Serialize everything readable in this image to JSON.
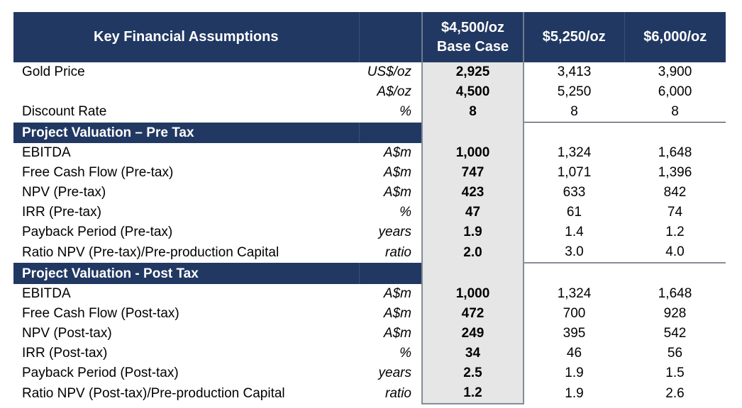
{
  "header": {
    "title": "Key Financial Assumptions",
    "unit_header": "",
    "columns": [
      {
        "line1": "$4,500/oz",
        "line2": "Base Case"
      },
      {
        "line1": "$5,250/oz",
        "line2": ""
      },
      {
        "line1": "$6,000/oz",
        "line2": ""
      }
    ]
  },
  "assumptions": [
    {
      "label": "Gold Price",
      "unit": "US$/oz",
      "base": "2,925",
      "alt1": "3,413",
      "alt2": "3,900"
    },
    {
      "label": "",
      "unit": "A$/oz",
      "base": "4,500",
      "alt1": "5,250",
      "alt2": "6,000"
    },
    {
      "label": "Discount Rate",
      "unit": "%",
      "base": "8",
      "alt1": "8",
      "alt2": "8"
    }
  ],
  "pre_tax": {
    "title": "Project Valuation – Pre Tax",
    "rows": [
      {
        "label": "EBITDA",
        "unit": "A$m",
        "base": "1,000",
        "alt1": "1,324",
        "alt2": "1,648"
      },
      {
        "label": "Free Cash Flow (Pre-tax)",
        "unit": "A$m",
        "base": "747",
        "alt1": "1,071",
        "alt2": "1,396"
      },
      {
        "label": "NPV (Pre-tax)",
        "unit": "A$m",
        "base": "423",
        "alt1": "633",
        "alt2": "842"
      },
      {
        "label": "IRR (Pre-tax)",
        "unit": "%",
        "base": "47",
        "alt1": "61",
        "alt2": "74"
      },
      {
        "label": "Payback Period (Pre-tax)",
        "unit": "years",
        "base": "1.9",
        "alt1": "1.4",
        "alt2": "1.2"
      },
      {
        "label": "Ratio NPV (Pre-tax)/Pre-production Capital",
        "unit": "ratio",
        "base": "2.0",
        "alt1": "3.0",
        "alt2": "4.0"
      }
    ]
  },
  "post_tax": {
    "title": "Project Valuation - Post Tax",
    "rows": [
      {
        "label": "EBITDA",
        "unit": "A$m",
        "base": "1,000",
        "alt1": "1,324",
        "alt2": "1,648"
      },
      {
        "label": "Free Cash Flow (Post-tax)",
        "unit": "A$m",
        "base": "472",
        "alt1": "700",
        "alt2": "928"
      },
      {
        "label": "NPV (Post-tax)",
        "unit": "A$m",
        "base": "249",
        "alt1": "395",
        "alt2": "542"
      },
      {
        "label": "IRR (Post-tax)",
        "unit": "%",
        "base": "34",
        "alt1": "46",
        "alt2": "56"
      },
      {
        "label": "Payback Period (Post-tax)",
        "unit": "years",
        "base": "2.5",
        "alt1": "1.9",
        "alt2": "1.5"
      },
      {
        "label": "Ratio NPV (Post-tax)/Pre-production Capital",
        "unit": "ratio",
        "base": "1.2",
        "alt1": "1.9",
        "alt2": "2.6"
      }
    ]
  }
}
